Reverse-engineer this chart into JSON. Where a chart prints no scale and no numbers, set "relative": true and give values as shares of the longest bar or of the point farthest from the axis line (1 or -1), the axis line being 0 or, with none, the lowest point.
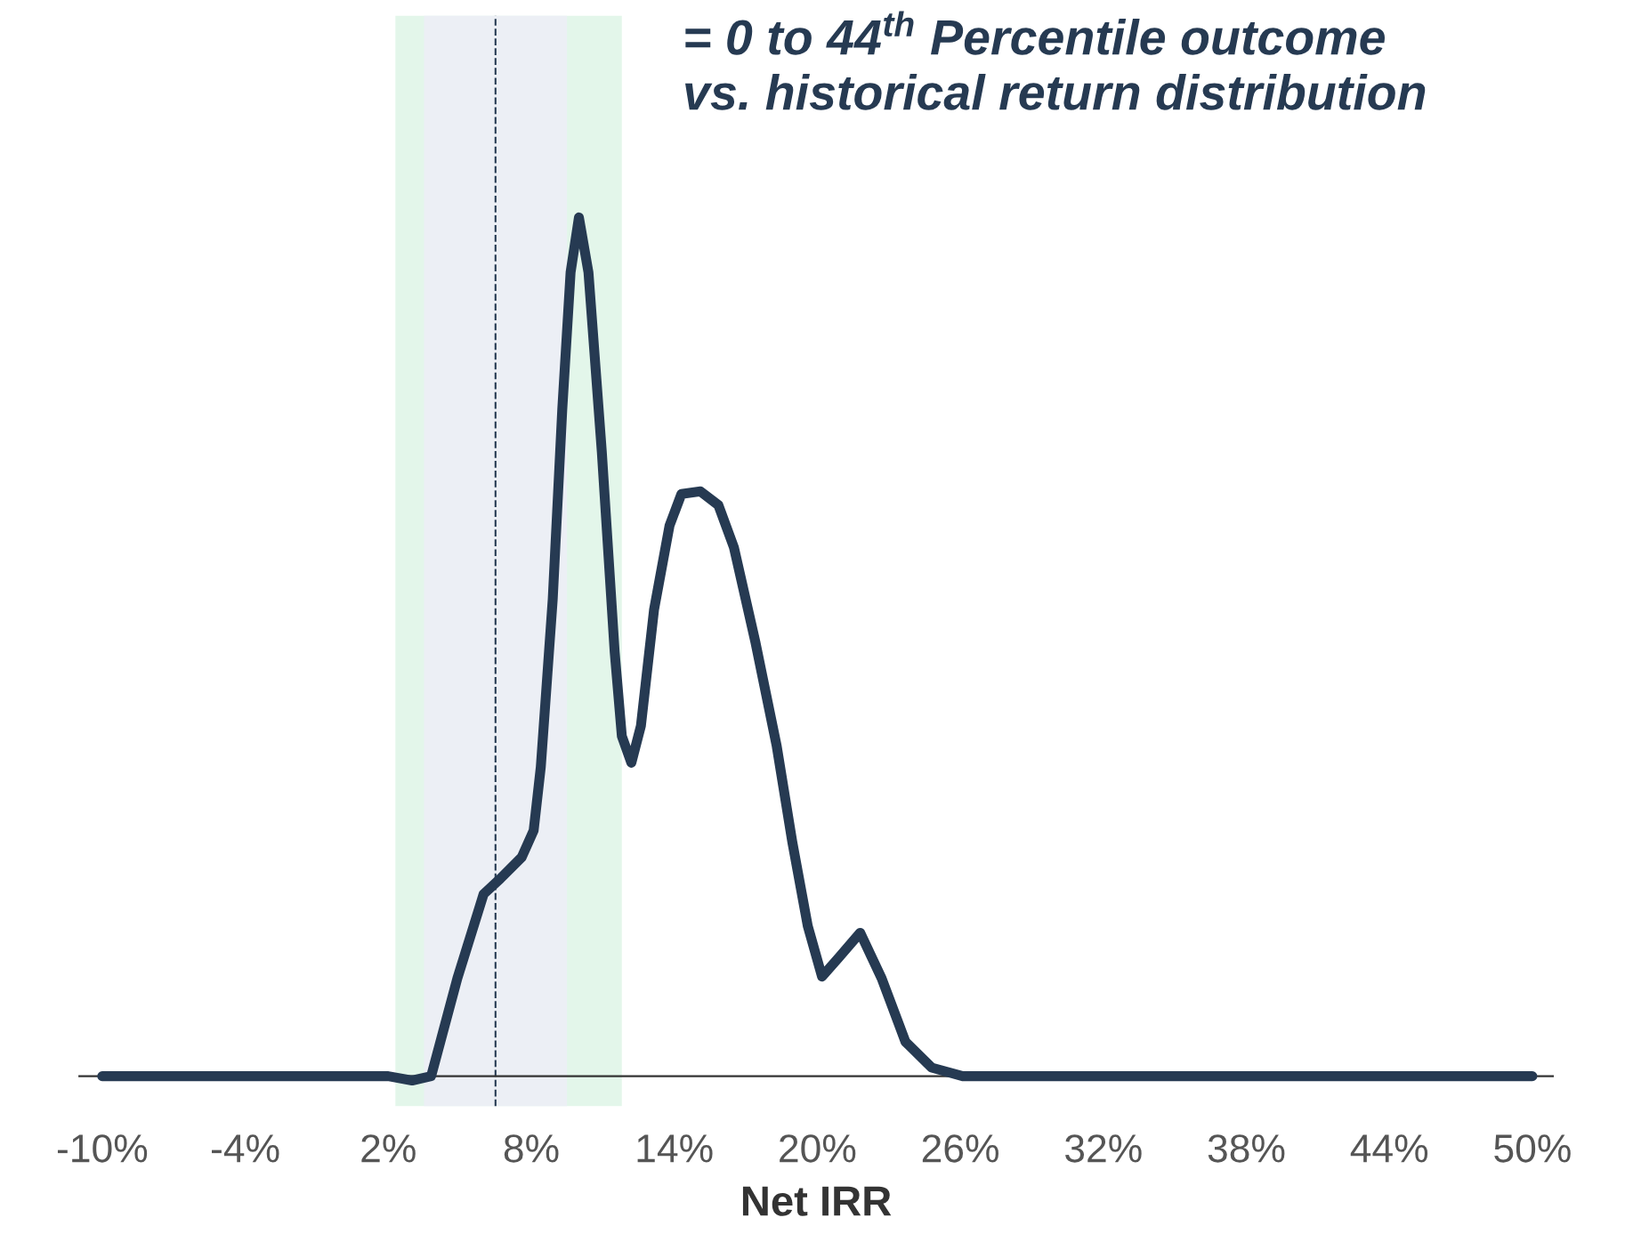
{
  "chart_data": {
    "type": "line",
    "relative": true,
    "title": "= 0 to 44$^{th}$ Percentile outcome\nvs. historical return distribution",
    "xlabel": "Net IRR",
    "x": [
      -10,
      2.0,
      3.0,
      3.8,
      4.9,
      6.0,
      6.7,
      7.6,
      8.1,
      8.4,
      8.9,
      9.3,
      9.65,
      10.0,
      10.4,
      10.96,
      11.5,
      11.8,
      12.2,
      12.6,
      13.15,
      13.8,
      14.3,
      15.1,
      15.85,
      16.5,
      17.4,
      18.3,
      18.95,
      19.6,
      20.2,
      20.9,
      21.8,
      22.7,
      23.7,
      24.8,
      26.1,
      27.6,
      50
    ],
    "series": [
      {
        "color": "#263a52",
        "values": [
          0,
          0,
          -0.005,
          0,
          0.114,
          0.212,
          0.23,
          0.255,
          0.286,
          0.36,
          0.555,
          0.776,
          0.936,
          1.0,
          0.936,
          0.727,
          0.494,
          0.396,
          0.365,
          0.408,
          0.543,
          0.641,
          0.678,
          0.681,
          0.665,
          0.616,
          0.506,
          0.384,
          0.273,
          0.175,
          0.116,
          0.138,
          0.167,
          0.114,
          0.04,
          0.01,
          0,
          0,
          0
        ]
      }
    ],
    "xlim": [
      -11,
      50.9
    ],
    "xticks": [
      {
        "value": -10,
        "label": "-10%"
      },
      {
        "value": -4,
        "label": "-4%"
      },
      {
        "value": 2,
        "label": "2%"
      },
      {
        "value": 8,
        "label": "8%"
      },
      {
        "value": 14,
        "label": "14%"
      },
      {
        "value": 20,
        "label": "20%"
      },
      {
        "value": 26,
        "label": "26%"
      },
      {
        "value": 32,
        "label": "32%"
      },
      {
        "value": 38,
        "label": "38%"
      },
      {
        "value": 44,
        "label": "44%"
      },
      {
        "value": 50,
        "label": "50%"
      }
    ],
    "bands": [
      {
        "axis": "x",
        "from": 2.3,
        "to": 11.8,
        "color": "#e3f6ea"
      },
      {
        "axis": "x",
        "from": 3.5,
        "to": 9.5,
        "color": "#eceff5"
      }
    ],
    "ref_lines": [
      {
        "axis": "x",
        "value": 6.5,
        "color": "#263a52",
        "line_style": "dashed"
      }
    ],
    "grid": false,
    "legend": false,
    "marker": "none",
    "line_style": "solid"
  }
}
